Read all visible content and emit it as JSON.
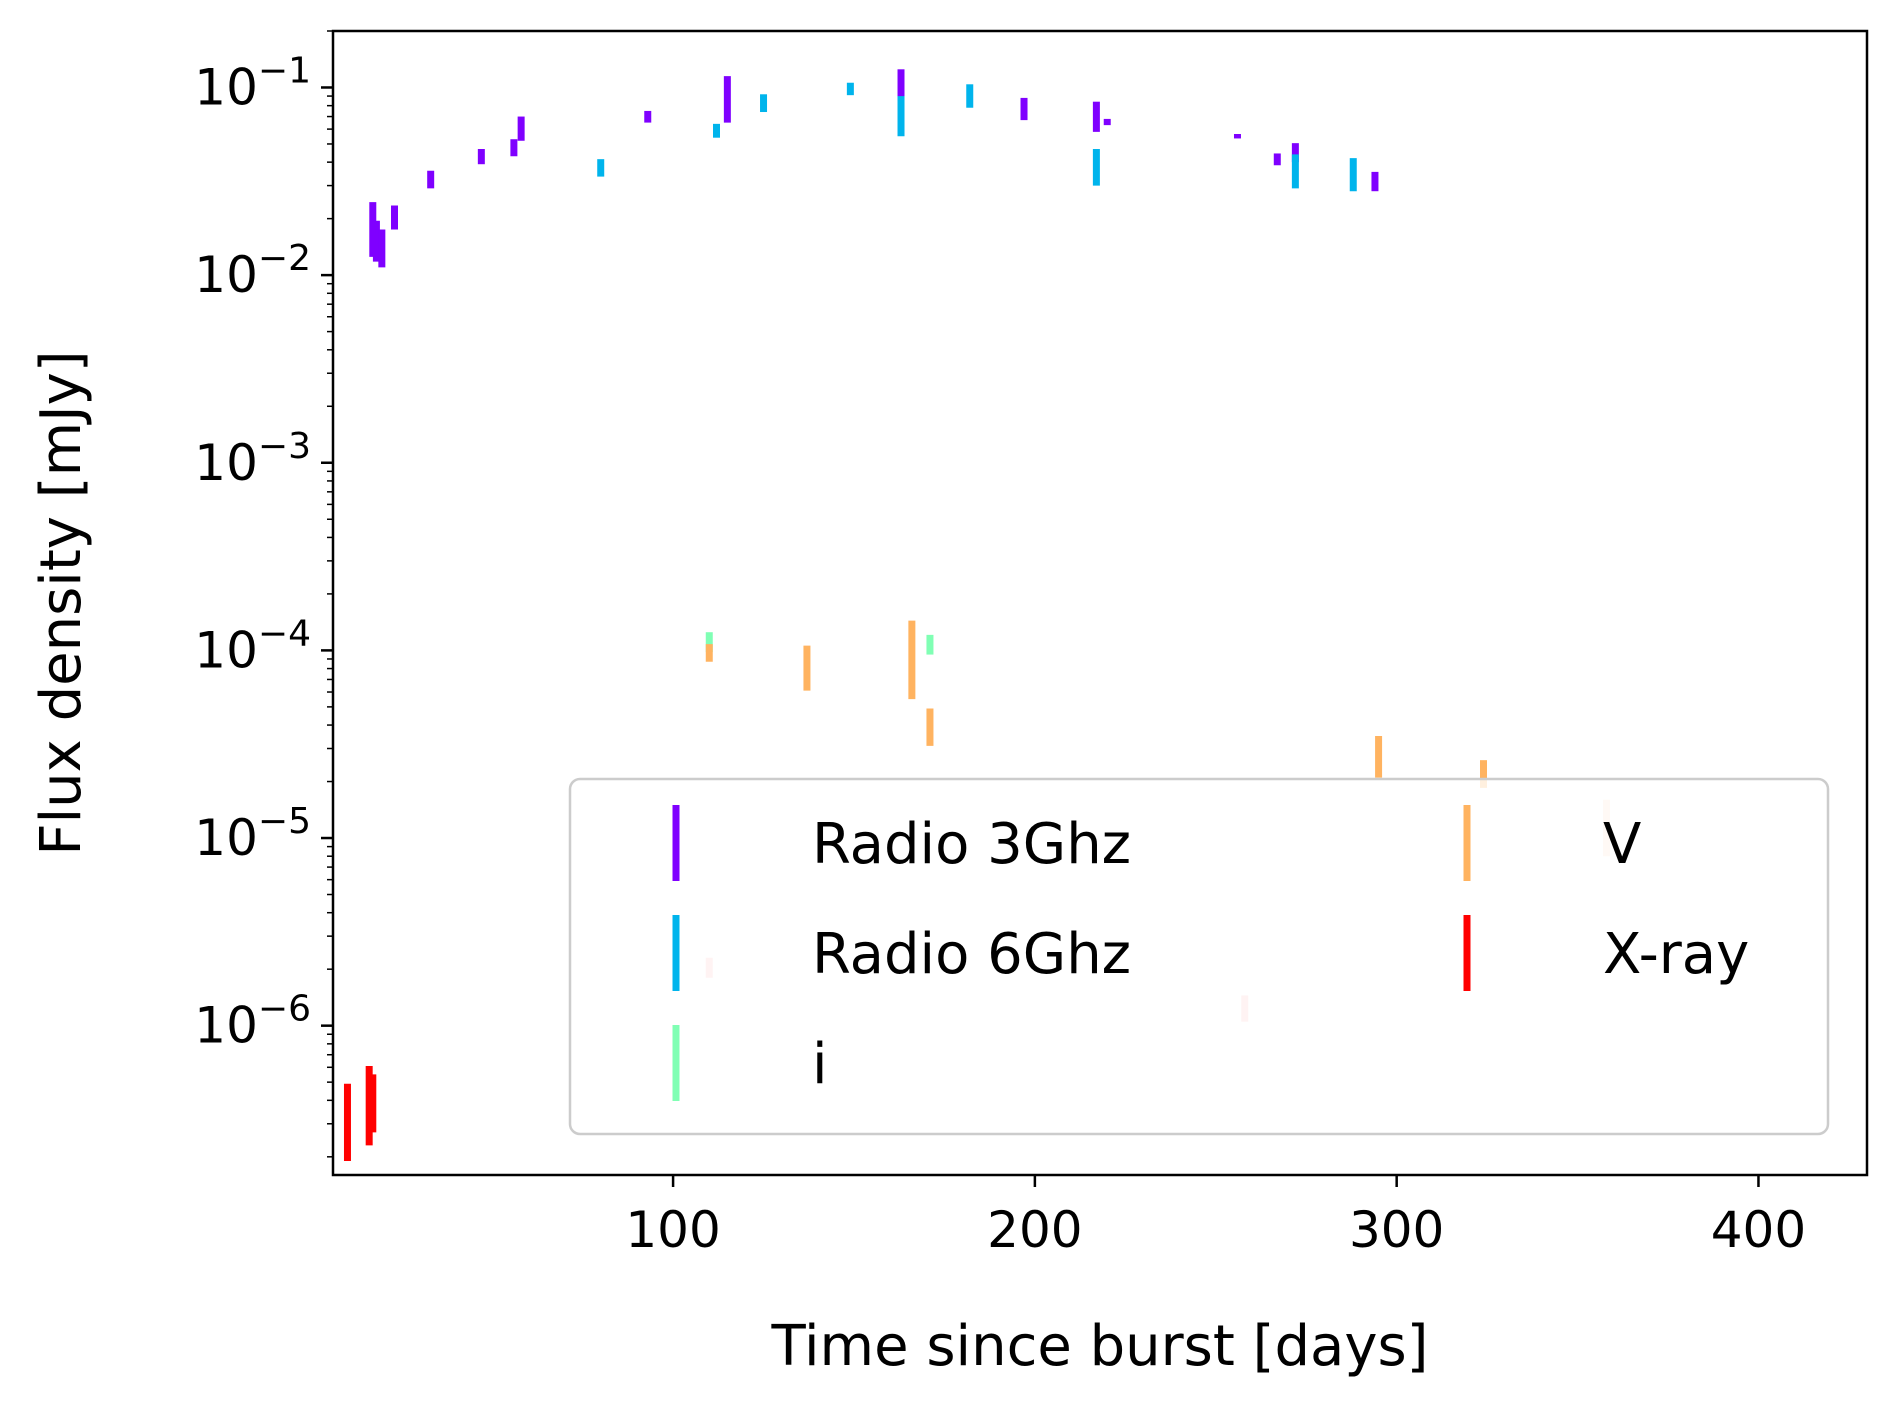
{
  "chart_data": {
    "type": "scatter",
    "title": "",
    "xlabel": "Time since burst [days]",
    "ylabel": "Flux density [mJy]",
    "xscale": "linear",
    "yscale": "log",
    "xlim": [
      6,
      430
    ],
    "ylim": [
      1.6e-07,
      0.2
    ],
    "xticks": [
      {
        "value": 100,
        "label": "100"
      },
      {
        "value": 200,
        "label": "200"
      },
      {
        "value": 300,
        "label": "300"
      },
      {
        "value": 400,
        "label": "400"
      }
    ],
    "yticks": [
      {
        "value": 1e-06,
        "base": "10",
        "exp": "−6"
      },
      {
        "value": 1e-05,
        "base": "10",
        "exp": "−5"
      },
      {
        "value": 0.0001,
        "base": "10",
        "exp": "−4"
      },
      {
        "value": 0.001,
        "base": "10",
        "exp": "−3"
      },
      {
        "value": 0.01,
        "base": "10",
        "exp": "−2"
      },
      {
        "value": 0.1,
        "base": "10",
        "exp": "−1"
      }
    ],
    "grid": false,
    "legend": {
      "placement": "lower-right",
      "columns": 2
    },
    "series": [
      {
        "name": "Radio 3Ghz",
        "color": "#7f00ff",
        "marker": "errorbar",
        "points": [
          {
            "x": 17,
            "lo": 0.0125,
            "hi": 0.0245
          },
          {
            "x": 18,
            "lo": 0.0118,
            "hi": 0.0195
          },
          {
            "x": 19.5,
            "lo": 0.011,
            "hi": 0.0175
          },
          {
            "x": 23,
            "lo": 0.0175,
            "hi": 0.0235
          },
          {
            "x": 33,
            "lo": 0.029,
            "hi": 0.036
          },
          {
            "x": 47,
            "lo": 0.039,
            "hi": 0.047
          },
          {
            "x": 56,
            "lo": 0.043,
            "hi": 0.053
          },
          {
            "x": 58,
            "lo": 0.052,
            "hi": 0.07
          },
          {
            "x": 93,
            "lo": 0.065,
            "hi": 0.075
          },
          {
            "x": 115,
            "lo": 0.065,
            "hi": 0.115
          },
          {
            "x": 163,
            "lo": 0.085,
            "hi": 0.125
          },
          {
            "x": 197,
            "lo": 0.067,
            "hi": 0.088
          },
          {
            "x": 217,
            "lo": 0.058,
            "hi": 0.084
          },
          {
            "x": 220,
            "lo": 0.063,
            "hi": 0.068
          },
          {
            "x": 256,
            "lo": 0.0535,
            "hi": 0.0565
          },
          {
            "x": 267,
            "lo": 0.0385,
            "hi": 0.0445
          },
          {
            "x": 272,
            "lo": 0.04,
            "hi": 0.0505
          },
          {
            "x": 294,
            "lo": 0.028,
            "hi": 0.0355
          }
        ]
      },
      {
        "name": "Radio 6Ghz",
        "color": "#00b4ec",
        "marker": "errorbar",
        "points": [
          {
            "x": 80,
            "lo": 0.0335,
            "hi": 0.0415
          },
          {
            "x": 112,
            "lo": 0.054,
            "hi": 0.064
          },
          {
            "x": 125,
            "lo": 0.074,
            "hi": 0.092
          },
          {
            "x": 149,
            "lo": 0.091,
            "hi": 0.106
          },
          {
            "x": 163,
            "lo": 0.055,
            "hi": 0.09
          },
          {
            "x": 182,
            "lo": 0.078,
            "hi": 0.104
          },
          {
            "x": 217,
            "lo": 0.03,
            "hi": 0.047
          },
          {
            "x": 272,
            "lo": 0.029,
            "hi": 0.044
          },
          {
            "x": 288,
            "lo": 0.028,
            "hi": 0.042
          }
        ]
      },
      {
        "name": "i",
        "color": "#80ffb4",
        "marker": "errorbar",
        "points": [
          {
            "x": 110,
            "lo": 9.8e-05,
            "hi": 0.000125
          },
          {
            "x": 171,
            "lo": 9.5e-05,
            "hi": 0.000121
          }
        ]
      },
      {
        "name": "V",
        "color": "#ffb360",
        "marker": "errorbar",
        "points": [
          {
            "x": 110,
            "lo": 8.7e-05,
            "hi": 0.000108
          },
          {
            "x": 137,
            "lo": 6.1e-05,
            "hi": 0.000106
          },
          {
            "x": 166,
            "lo": 5.5e-05,
            "hi": 0.000144
          },
          {
            "x": 171,
            "lo": 3.1e-05,
            "hi": 4.9e-05
          },
          {
            "x": 295,
            "lo": 2.1e-05,
            "hi": 3.5e-05
          },
          {
            "x": 324,
            "lo": 1.85e-05,
            "hi": 2.6e-05
          }
        ]
      },
      {
        "name": "",
        "color": "#ffe0cc",
        "marker": "errorbar",
        "points": [
          {
            "x": 358,
            "lo": 8e-06,
            "hi": 1.6e-05
          }
        ]
      },
      {
        "name": "",
        "color": "#ffc4c4",
        "marker": "errorbar",
        "points": [
          {
            "x": 110,
            "lo": 1.8e-06,
            "hi": 2.3e-06
          },
          {
            "x": 258,
            "lo": 1.05e-06,
            "hi": 1.45e-06
          }
        ]
      },
      {
        "name": "X-ray",
        "color": "#ff0000",
        "marker": "errorbar",
        "points": [
          {
            "x": 10,
            "lo": 1.9e-07,
            "hi": 4.9e-07
          },
          {
            "x": 16,
            "lo": 2.3e-07,
            "hi": 6.1e-07
          },
          {
            "x": 17,
            "lo": 2.7e-07,
            "hi": 5.5e-07
          }
        ]
      }
    ],
    "legend_order": [
      0,
      1,
      2,
      3,
      6
    ]
  }
}
